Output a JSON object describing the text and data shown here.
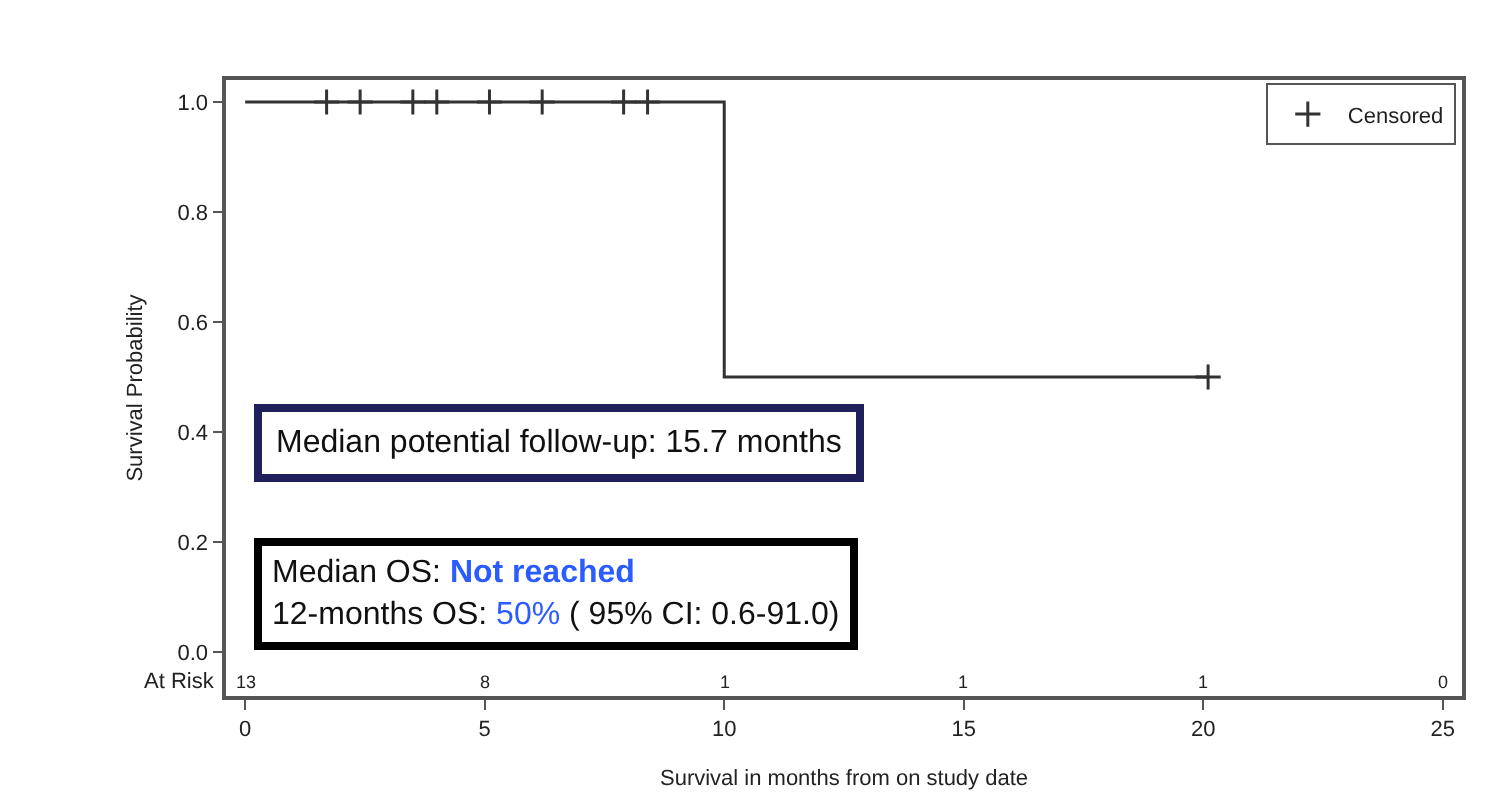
{
  "chart_data": {
    "type": "step",
    "xlabel": "Survival in months from on study date",
    "ylabel": "Survival Probability",
    "series": [
      {
        "color": "#333333",
        "x": [
          0,
          10,
          20.1
        ],
        "values": [
          1.0,
          0.5,
          0.5
        ]
      },
      {
        "type": "scatter",
        "name": "Censored",
        "color": "#333333",
        "marker": "cross",
        "x": [
          1.7,
          2.4,
          3.5,
          4.0,
          5.1,
          6.2,
          7.9,
          8.4,
          20.1
        ],
        "values": [
          1.0,
          1.0,
          1.0,
          1.0,
          1.0,
          1.0,
          1.0,
          1.0,
          0.5
        ]
      }
    ],
    "xlim": [
      -0.4,
      25.4
    ],
    "xticks": [
      0,
      5,
      10,
      15,
      20,
      25
    ],
    "ylim": [
      -0.08,
      1.04
    ],
    "yticks": [
      {
        "value": 0,
        "label": "0.0"
      },
      {
        "value": 0.2,
        "label": "0.2"
      },
      {
        "value": 0.4,
        "label": "0.4"
      },
      {
        "value": 0.6,
        "label": "0.6"
      },
      {
        "value": 0.8,
        "label": "0.8"
      },
      {
        "value": 1.0,
        "label": "1.0"
      }
    ],
    "legend": "top right",
    "line_style": "solid",
    "annotations": [
      "Median potential follow-up: 15.7 months",
      "Median OS:",
      "Not reached",
      "12-months OS:",
      "50%",
      "( 95% CI: 0.6-91.0)",
      "At Risk",
      "13",
      "8",
      "1",
      "1",
      "1",
      "0"
    ]
  }
}
